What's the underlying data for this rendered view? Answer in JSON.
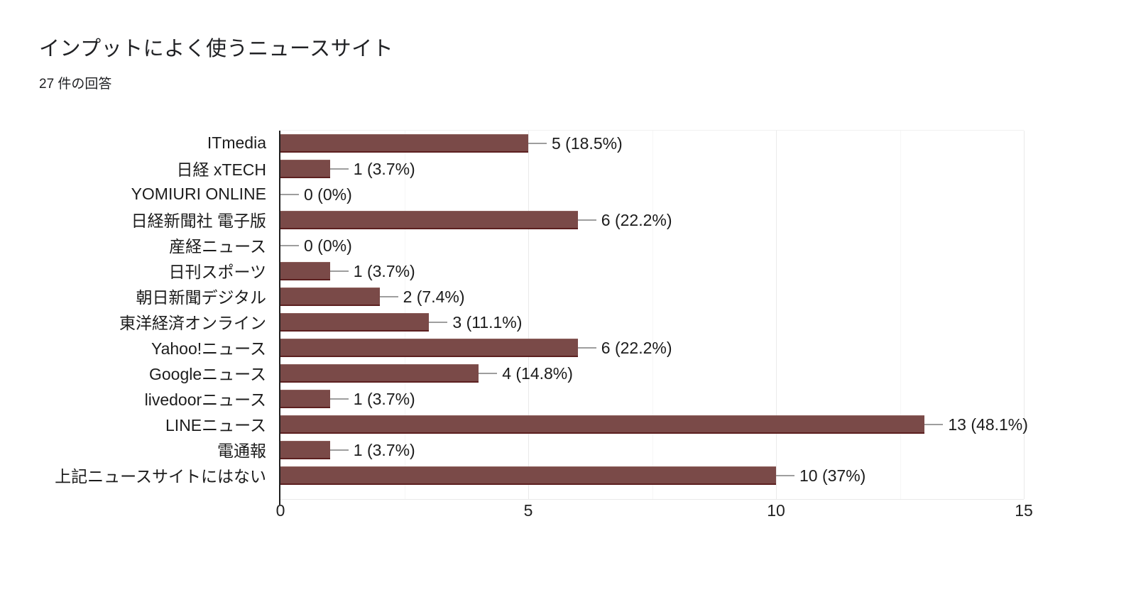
{
  "header": {
    "title": "インプットによく使うニュースサイト",
    "subtitle": "27 件の回答"
  },
  "chart_data": {
    "type": "bar",
    "orientation": "horizontal",
    "title": "インプットによく使うニュースサイト",
    "subtitle": "27 件の回答",
    "response_count": 27,
    "categories": [
      "ITmedia",
      "日経 xTECH",
      "YOMIURI ONLINE",
      "日経新聞社 電子版",
      "産経ニュース",
      "日刊スポーツ",
      "朝日新聞デジタル",
      "東洋経済オンライン",
      "Yahoo!ニュース",
      "Googleニュース",
      "livedoorニュース",
      "LINEニュース",
      "電通報",
      "上記ニュースサイトにはない"
    ],
    "values": [
      5,
      1,
      0,
      6,
      0,
      1,
      2,
      3,
      6,
      4,
      1,
      13,
      1,
      10
    ],
    "value_labels": [
      "5 (18.5%)",
      "1 (3.7%)",
      "0 (0%)",
      "6 (22.2%)",
      "0 (0%)",
      "1 (3.7%)",
      "2 (7.4%)",
      "3 (11.1%)",
      "6 (22.2%)",
      "4 (14.8%)",
      "1 (3.7%)",
      "13 (48.1%)",
      "1 (3.7%)",
      "10 (37%)"
    ],
    "xlim": [
      0,
      15
    ],
    "x_ticks": [
      0,
      5,
      10,
      15
    ],
    "grid_step": 2.5,
    "grid": true,
    "legend": "none",
    "colors": {
      "bar_fill": "#7a4a48",
      "bar_edge_dark": "#5c2020",
      "bar_edge_light": "#8c5f5b",
      "leader_line": "#9e9e9e",
      "grid_major": "#eaeaea",
      "grid_minor": "#f6f6f6",
      "axis_line": "#1f1f1f",
      "text": "#202124"
    }
  }
}
